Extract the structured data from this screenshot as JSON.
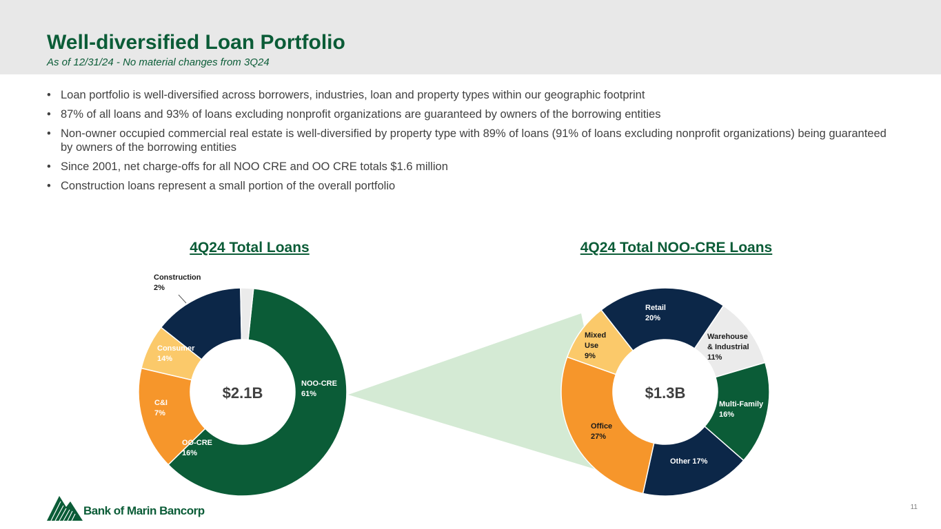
{
  "header": {
    "title": "Well-diversified Loan Portfolio",
    "subtitle": "As of 12/31/24 - No material changes from 3Q24"
  },
  "bullets": [
    "Loan portfolio is well-diversified across borrowers, industries, loan and property types within our geographic footprint",
    "87% of all loans and 93% of loans excluding nonprofit organizations are guaranteed by owners of the borrowing entities",
    "Non-owner occupied commercial real estate is well-diversified by property type with 89% of loans (91% of loans excluding nonprofit organizations) being guaranteed by owners of the borrowing entities",
    "Since 2001, net charge-offs for all NOO CRE and OO CRE totals $1.6 million",
    "Construction loans represent a small portion of the overall portfolio"
  ],
  "colors": {
    "dark_green": "#0b5c37",
    "navy": "#0c2748",
    "orange": "#f6962b",
    "light_yellow": "#fbc96a",
    "light_gray": "#ebebeb",
    "highlight": "#d4ead4"
  },
  "chart_data": [
    {
      "type": "pie",
      "title": "4Q24 Total Loans",
      "center_label": "$2.1B",
      "slices": [
        {
          "label": "NOO-CRE",
          "value": 61,
          "value_label": "61%",
          "color": "#0b5c37"
        },
        {
          "label": "OO-CRE",
          "value": 16,
          "value_label": "16%",
          "color": "#f6962b"
        },
        {
          "label": "C&I",
          "value": 7,
          "value_label": "7%",
          "color": "#fbc96a"
        },
        {
          "label": "Consumer",
          "value": 14,
          "value_label": "14%",
          "color": "#0c2748"
        },
        {
          "label": "Construction",
          "value": 2,
          "value_label": "2%",
          "color": "#ebebeb"
        }
      ]
    },
    {
      "type": "pie",
      "title": "4Q24 Total NOO-CRE Loans",
      "center_label": "$1.3B",
      "slices": [
        {
          "label": "Retail",
          "value": 20,
          "value_label": "20%",
          "color": "#0c2748"
        },
        {
          "label": "Warehouse & Industrial",
          "value": 11,
          "value_label": "11%",
          "color": "#ebebeb"
        },
        {
          "label": "Multi-Family",
          "value": 16,
          "value_label": "16%",
          "color": "#0b5c37"
        },
        {
          "label": "Other",
          "value": 17,
          "value_label": "17%",
          "color": "#0c2748"
        },
        {
          "label": "Office",
          "value": 27,
          "value_label": "27%",
          "color": "#f6962b"
        },
        {
          "label": "Mixed Use",
          "value": 9,
          "value_label": "9%",
          "color": "#fbc96a"
        }
      ]
    }
  ],
  "footer": {
    "logo_text": "Bank of Marin Bancorp",
    "page_number": "11"
  }
}
